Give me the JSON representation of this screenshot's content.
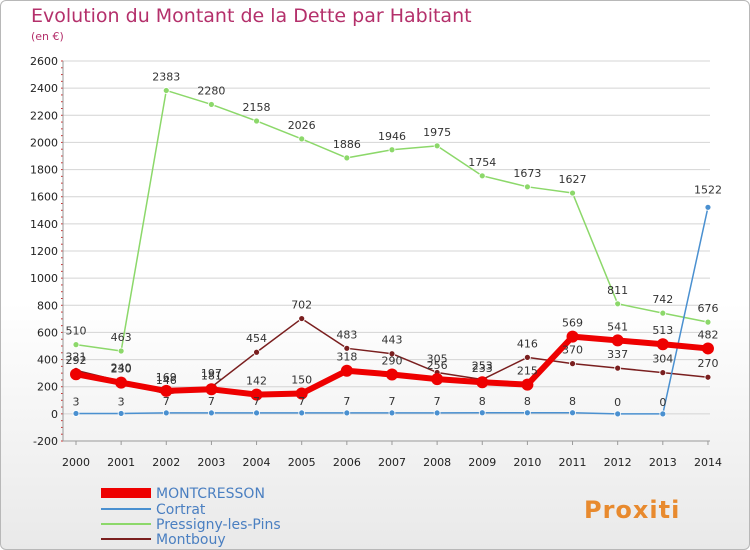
{
  "title": "Evolution du Montant de la Dette par Habitant",
  "subtitle": "(en €)",
  "brand": "Proxiti",
  "chart_data": {
    "type": "line",
    "title": "Evolution du Montant de la Dette par Habitant",
    "ylabel": "(en €)",
    "x": [
      "2000",
      "2001",
      "2002",
      "2003",
      "2004",
      "2005",
      "2006",
      "2007",
      "2008",
      "2009",
      "2010",
      "2011",
      "2012",
      "2013",
      "2014"
    ],
    "ylim": [
      -200,
      2600
    ],
    "yticks": [
      -200,
      0,
      200,
      400,
      600,
      800,
      1000,
      1200,
      1400,
      1600,
      1800,
      2000,
      2200,
      2400,
      2600
    ],
    "grid": "horizontal",
    "legend_position": "bottom-left",
    "series": [
      {
        "name": "MONTCRESSON",
        "color": "#ee0000",
        "values": [
          292,
          230,
          169,
          181,
          142,
          150,
          318,
          290,
          256,
          233,
          215,
          569,
          541,
          513,
          482
        ],
        "labels": [
          "292",
          "230",
          "169",
          "181",
          "142",
          "150",
          "318",
          "290",
          "256",
          "233",
          "215",
          "569",
          "541",
          "513",
          "482"
        ]
      },
      {
        "name": "Cortrat",
        "color": "#4a90d0",
        "values": [
          3,
          3,
          7,
          7,
          7,
          7,
          7,
          7,
          7,
          8,
          8,
          8,
          0,
          0,
          1522
        ],
        "labels": [
          "3",
          "3",
          "7",
          "7",
          "7",
          "7",
          "7",
          "7",
          "7",
          "8",
          "8",
          "8",
          "0",
          "0",
          "1522"
        ]
      },
      {
        "name": "Pressigny-les-Pins",
        "color": "#8cd86a",
        "values": [
          510,
          463,
          2383,
          2280,
          2158,
          2026,
          1886,
          1946,
          1975,
          1754,
          1673,
          1627,
          811,
          742,
          676
        ],
        "labels": [
          "510",
          "463",
          "2383",
          "2280",
          "2158",
          "2026",
          "1886",
          "1946",
          "1975",
          "1754",
          "1673",
          "1627",
          "811",
          "742",
          "676"
        ]
      },
      {
        "name": "Montbouy",
        "color": "#7a1f1f",
        "values": [
          321,
          240,
          146,
          197,
          454,
          702,
          483,
          443,
          305,
          253,
          416,
          370,
          337,
          304,
          270
        ],
        "labels": [
          "321",
          "240",
          "146",
          "197",
          "454",
          "702",
          "483",
          "443",
          "305",
          "253",
          "416",
          "370",
          "337",
          "304",
          "270"
        ]
      }
    ]
  }
}
